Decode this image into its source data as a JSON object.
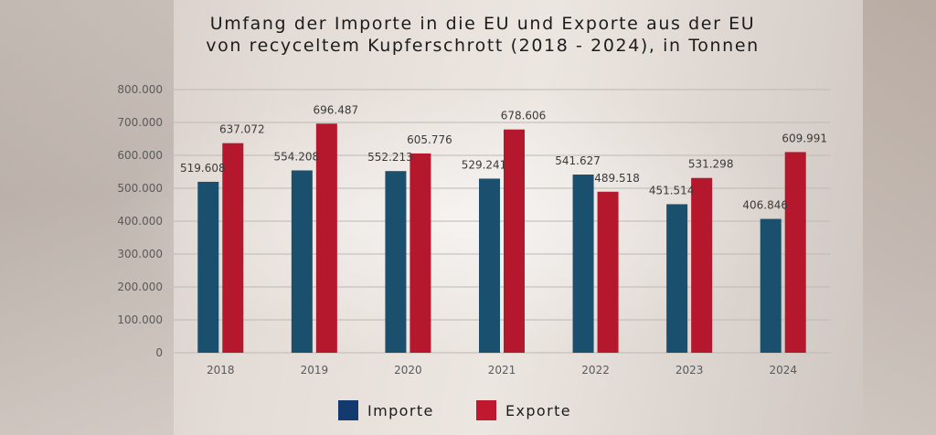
{
  "title_lines": [
    "Umfang der Importe in die EU und Exporte aus der EU",
    "von recyceltem Kupferschrott (2018 - 2024), in Tonnen"
  ],
  "colors": {
    "importe": "#1b4f6e",
    "exporte": "#b5182d",
    "legend_importe": "#123a6f",
    "legend_exporte": "#c0182f",
    "grid": "#bdb8b4",
    "axis_text": "#5a5a5a",
    "value_text": "#3a3a3a"
  },
  "legend": [
    {
      "label": "Importe",
      "color_key": "legend_importe"
    },
    {
      "label": "Exporte",
      "color_key": "legend_exporte"
    }
  ],
  "chart_data": {
    "type": "bar",
    "title": "Umfang der Importe in die EU und Exporte aus der EU von recyceltem Kupferschrott (2018 - 2024), in Tonnen",
    "categories": [
      "2018",
      "2019",
      "2020",
      "2021",
      "2022",
      "2023",
      "2024"
    ],
    "series": [
      {
        "name": "Importe",
        "values": [
          519608,
          554208,
          552213,
          529241,
          541627,
          451514,
          406846
        ],
        "labels": [
          "519.608",
          "554.208",
          "552.213",
          "529.241",
          "541.627",
          "451.514",
          "406.846"
        ]
      },
      {
        "name": "Exporte",
        "values": [
          637072,
          696487,
          605776,
          678606,
          489518,
          531298,
          609991
        ],
        "labels": [
          "637.072",
          "696.487",
          "605.776",
          "678.606",
          "489.518",
          "531.298",
          "609.991"
        ]
      }
    ],
    "ylim": [
      0,
      800000
    ],
    "yticks": [
      0,
      100000,
      200000,
      300000,
      400000,
      500000,
      600000,
      700000,
      800000
    ],
    "ytick_labels": [
      "0",
      "100.000",
      "200.000",
      "300.000",
      "400.000",
      "500.000",
      "600.000",
      "700.000",
      "800.000"
    ],
    "grid": true,
    "legend_position": "bottom"
  }
}
